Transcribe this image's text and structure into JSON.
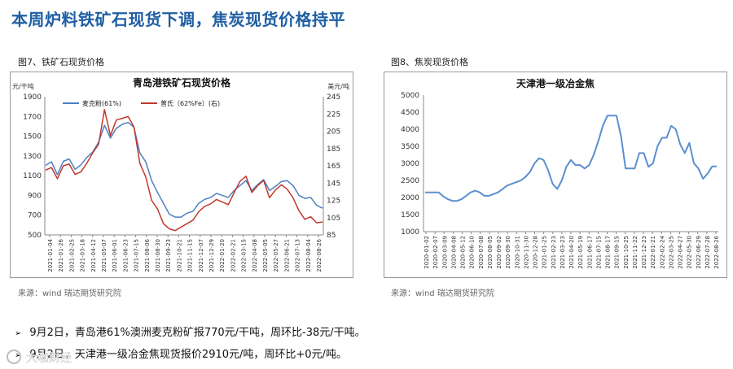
{
  "page_title": "本周炉料铁矿石现货下调，焦炭现货价格持平",
  "figures": [
    {
      "label": "图7、铁矿石现货价格",
      "source": "来源：wind   瑞达期货研究院"
    },
    {
      "label": "图8、焦炭现货价格",
      "source": "来源：wind   瑞达期货研究院"
    }
  ],
  "bullets": [
    "9月2日，青岛港61%澳洲麦克粉矿报770元/干吨，周环比-38元/干吨。",
    "9月2日，天津港一级冶金焦现货报价2910元/吨，周环比+0元/吨。"
  ],
  "watermark_text": "大咖财经",
  "colors": {
    "title": "#1f5fa3",
    "series_blue": "#4f7fc0",
    "series_red": "#c0392b",
    "coke_line": "#5b8fcf"
  },
  "chart_data": [
    {
      "type": "line",
      "title": "青岛港铁矿石现货价格",
      "ylabel_left": "元/干吨",
      "ylabel_right": "美元/吨",
      "ylim_left": [
        500,
        1900
      ],
      "ylim_right": [
        85,
        245
      ],
      "yticks_left": [
        500,
        700,
        900,
        1100,
        1300,
        1500,
        1700,
        1900
      ],
      "yticks_right": [
        85,
        105,
        125,
        145,
        165,
        185,
        205,
        225,
        245
      ],
      "xticks": [
        "2021-01-04",
        "2021-01-26",
        "2021-02-25",
        "2021-03-18",
        "2021-04-12",
        "2021-05-07",
        "2021-06-01",
        "2021-06-23",
        "2021-07-15",
        "2021-08-06",
        "2021-08-30",
        "2021-09-23",
        "2021-10-21",
        "2021-11-15",
        "2021-12-07",
        "2021-12-29",
        "2022-01-20",
        "2022-02-21",
        "2022-03-15",
        "2022-04-08",
        "2022-05-05",
        "2022-05-27",
        "2022-06-21",
        "2022-07-13",
        "2022-08-04",
        "2022-08-26"
      ],
      "legend": [
        "麦克粉(61%)",
        "普氏（62%Fe）(右)"
      ],
      "series": [
        {
          "name": "麦克粉(61%)",
          "axis": "left",
          "values": [
            1205,
            1240,
            1110,
            1245,
            1270,
            1165,
            1210,
            1285,
            1340,
            1440,
            1610,
            1480,
            1580,
            1620,
            1640,
            1590,
            1330,
            1240,
            1050,
            930,
            820,
            710,
            680,
            680,
            720,
            740,
            820,
            860,
            880,
            920,
            900,
            880,
            950,
            1000,
            1050,
            950,
            1010,
            1060,
            950,
            990,
            1040,
            1050,
            1000,
            900,
            870,
            880,
            800,
            770
          ]
        },
        {
          "name": "普氏（62%Fe）(右)",
          "axis": "right",
          "values": [
            160,
            163,
            150,
            165,
            167,
            155,
            158,
            168,
            180,
            190,
            230,
            200,
            218,
            220,
            222,
            210,
            168,
            152,
            125,
            115,
            98,
            92,
            90,
            94,
            98,
            102,
            112,
            118,
            121,
            126,
            123,
            120,
            134,
            147,
            153,
            134,
            142,
            148,
            128,
            137,
            143,
            138,
            128,
            113,
            103,
            106,
            99,
            100
          ]
        }
      ]
    },
    {
      "type": "line",
      "title": "天津港一级冶金焦",
      "ylim": [
        1000,
        5000
      ],
      "yticks": [
        1000,
        1500,
        2000,
        2500,
        3000,
        3500,
        4000,
        4500,
        5000
      ],
      "xticks": [
        "2020-01-02",
        "2020-02-07",
        "2020-03-09",
        "2020-04-08",
        "2020-05-12",
        "2020-06-10",
        "2020-07-08",
        "2020-08-05",
        "2020-09-02",
        "2020-09-30",
        "2020-10-31",
        "2020-11-30",
        "2020-12-28",
        "2021-01-25",
        "2021-02-23",
        "2021-03-23",
        "2021-04-20",
        "2021-05-19",
        "2021-06-17",
        "2021-07-15",
        "2021-08-17",
        "2021-09-15",
        "2021-10-25",
        "2021-11-22",
        "2021-12-23",
        "2022-01-21",
        "2022-02-24",
        "2022-03-25",
        "2022-04-27",
        "2022-05-30",
        "2022-06-29",
        "2022-07-28",
        "2022-08-26"
      ],
      "series": [
        {
          "name": "天津港一级冶金焦",
          "values": [
            2150,
            2150,
            2150,
            2150,
            2030,
            1950,
            1900,
            1900,
            1950,
            2050,
            2150,
            2200,
            2150,
            2050,
            2050,
            2100,
            2150,
            2250,
            2350,
            2400,
            2450,
            2500,
            2600,
            2750,
            3000,
            3150,
            3100,
            2800,
            2400,
            2250,
            2500,
            2900,
            3100,
            2950,
            2950,
            2850,
            2950,
            3250,
            3650,
            4100,
            4400,
            4400,
            4400,
            3800,
            2850,
            2850,
            2850,
            3300,
            3300,
            2900,
            3000,
            3500,
            3750,
            3750,
            4100,
            4000,
            3550,
            3300,
            3600,
            3000,
            2850,
            2550,
            2700,
            2910,
            2910
          ]
        }
      ]
    }
  ]
}
